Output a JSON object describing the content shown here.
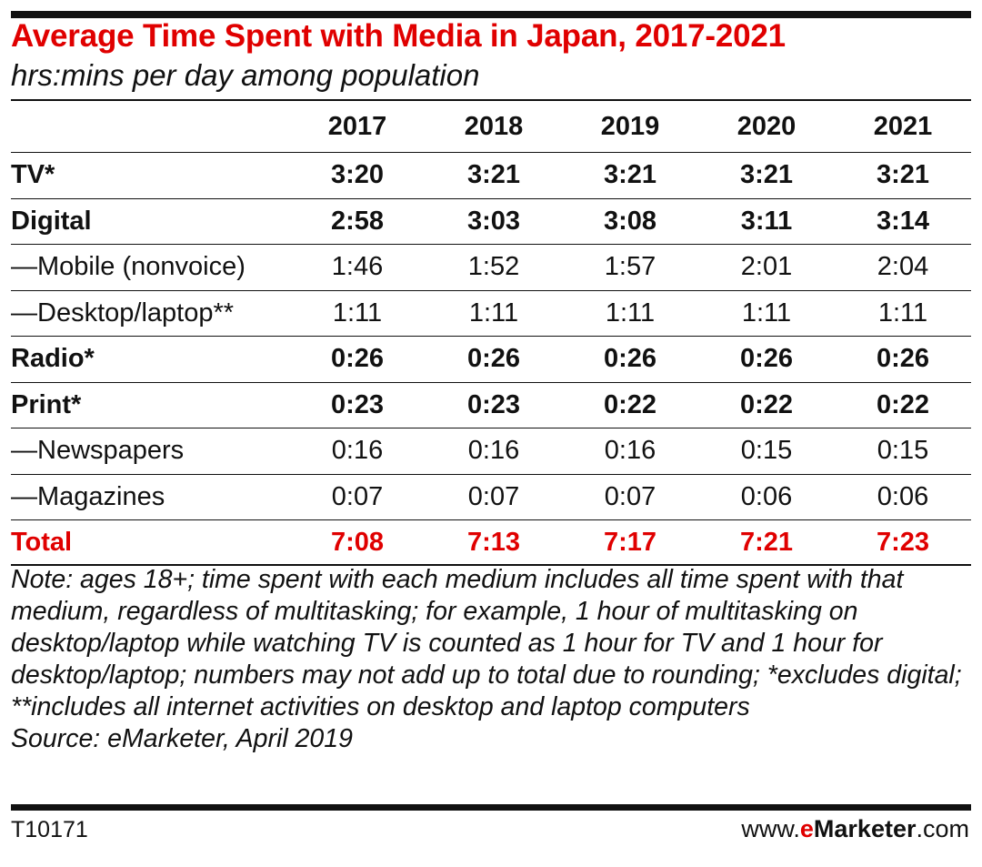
{
  "title": "Average Time Spent with Media in Japan, 2017-2021",
  "subtitle": "hrs:mins per day among population",
  "columns": [
    "2017",
    "2018",
    "2019",
    "2020",
    "2021"
  ],
  "rows": [
    {
      "label": "TV*",
      "values": [
        "3:20",
        "3:21",
        "3:21",
        "3:21",
        "3:21"
      ]
    },
    {
      "label": "Digital",
      "values": [
        "2:58",
        "3:03",
        "3:08",
        "3:11",
        "3:14"
      ]
    },
    {
      "label": "—Mobile (nonvoice)",
      "values": [
        "1:46",
        "1:52",
        "1:57",
        "2:01",
        "2:04"
      ]
    },
    {
      "label": "—Desktop/laptop**",
      "values": [
        "1:11",
        "1:11",
        "1:11",
        "1:11",
        "1:11"
      ]
    },
    {
      "label": "Radio*",
      "values": [
        "0:26",
        "0:26",
        "0:26",
        "0:26",
        "0:26"
      ]
    },
    {
      "label": "Print*",
      "values": [
        "0:23",
        "0:23",
        "0:22",
        "0:22",
        "0:22"
      ]
    },
    {
      "label": "—Newspapers",
      "values": [
        "0:16",
        "0:16",
        "0:16",
        "0:15",
        "0:15"
      ]
    },
    {
      "label": "—Magazines",
      "values": [
        "0:07",
        "0:07",
        "0:07",
        "0:06",
        "0:06"
      ]
    },
    {
      "label": "Total",
      "values": [
        "7:08",
        "7:13",
        "7:17",
        "7:21",
        "7:23"
      ]
    }
  ],
  "note": "Note: ages 18+; time spent with each medium includes all time spent with that medium, regardless of multitasking; for example, 1 hour of multitasking on desktop/laptop while watching TV is counted as 1 hour for TV and 1 hour for desktop/laptop; numbers may not add up to total due to rounding; *excludes digital; **includes all internet activities on desktop and laptop computers",
  "source": "Source: eMarketer, April 2019",
  "footer": {
    "id": "T10171",
    "brand_prefix": "www.",
    "brand_e": "e",
    "brand_name": "Marketer",
    "brand_suffix": ".com"
  },
  "colors": {
    "accent": "#e00000",
    "text": "#111111"
  }
}
